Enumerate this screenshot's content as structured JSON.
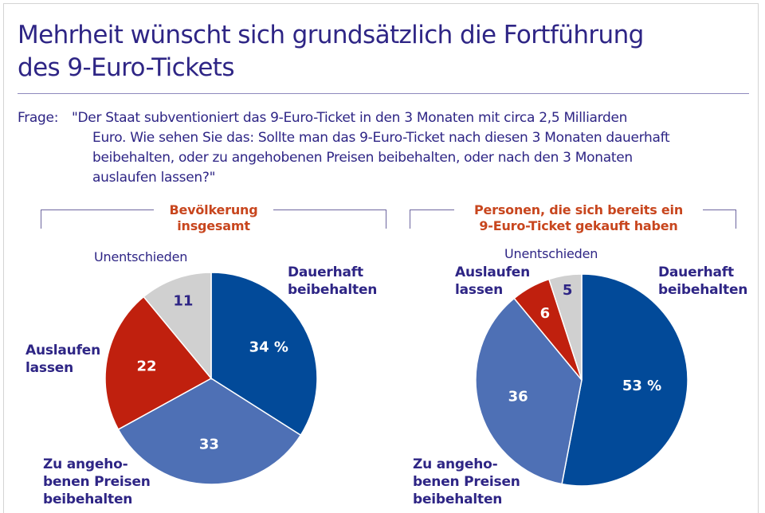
{
  "title_lines": [
    "Mehrheit wünscht sich grundsätzlich die Fortführung",
    "des 9-Euro-Tickets"
  ],
  "question": {
    "label": "Frage:",
    "lines": [
      "\"Der Staat subventioniert das 9-Euro-Ticket in den 3 Monaten mit circa 2,5 Milliarden",
      "Euro. Wie sehen Sie das: Sollte man das 9-Euro-Ticket nach diesen 3 Monaten dauerhaft",
      "beibehalten, oder zu angehobenen Preisen beibehalten, oder nach den 3 Monaten",
      "auslaufen lassen?\""
    ]
  },
  "colors": {
    "dauerhaft": "#024a99",
    "angehoben": "#4e70b5",
    "auslaufen": "#c0200e",
    "unentschieden": "#d0d0d0",
    "text": "#2e2585",
    "group_title": "#c8461e"
  },
  "chart_data": [
    {
      "type": "pie",
      "title": "Bevölkerung insgesamt",
      "title_lines": [
        "Bevölkerung",
        "insgesamt"
      ],
      "unit": "%",
      "slices": [
        {
          "key": "dauerhaft",
          "label": "Dauerhaft beibehalten",
          "label_lines": [
            "Dauerhaft",
            "beibehalten"
          ],
          "value": 34,
          "value_text": "34 %"
        },
        {
          "key": "angehoben",
          "label": "Zu angehobenen Preisen beibehalten",
          "label_lines": [
            "Zu angeho-",
            "benen Preisen",
            "beibehalten"
          ],
          "value": 33,
          "value_text": "33"
        },
        {
          "key": "auslaufen",
          "label": "Auslaufen lassen",
          "label_lines": [
            "Auslaufen",
            "lassen"
          ],
          "value": 22,
          "value_text": "22"
        },
        {
          "key": "unentschieden",
          "label": "Unentschieden",
          "label_lines": [
            "Unentschieden"
          ],
          "value": 11,
          "value_text": "11"
        }
      ]
    },
    {
      "type": "pie",
      "title": "Personen, die sich bereits ein 9-Euro-Ticket gekauft haben",
      "title_lines": [
        "Personen, die sich bereits ein",
        "9-Euro-Ticket gekauft haben"
      ],
      "unit": "%",
      "slices": [
        {
          "key": "dauerhaft",
          "label": "Dauerhaft beibehalten",
          "label_lines": [
            "Dauerhaft",
            "beibehalten"
          ],
          "value": 53,
          "value_text": "53 %"
        },
        {
          "key": "angehoben",
          "label": "Zu angehobenen Preisen beibehalten",
          "label_lines": [
            "Zu angeho-",
            "benen Preisen",
            "beibehalten"
          ],
          "value": 36,
          "value_text": "36"
        },
        {
          "key": "auslaufen",
          "label": "Auslaufen lassen",
          "label_lines": [
            "Auslaufen",
            "lassen"
          ],
          "value": 6,
          "value_text": "6"
        },
        {
          "key": "unentschieden",
          "label": "Unentschieden",
          "label_lines": [
            "Unentschieden"
          ],
          "value": 5,
          "value_text": "5"
        }
      ]
    }
  ]
}
